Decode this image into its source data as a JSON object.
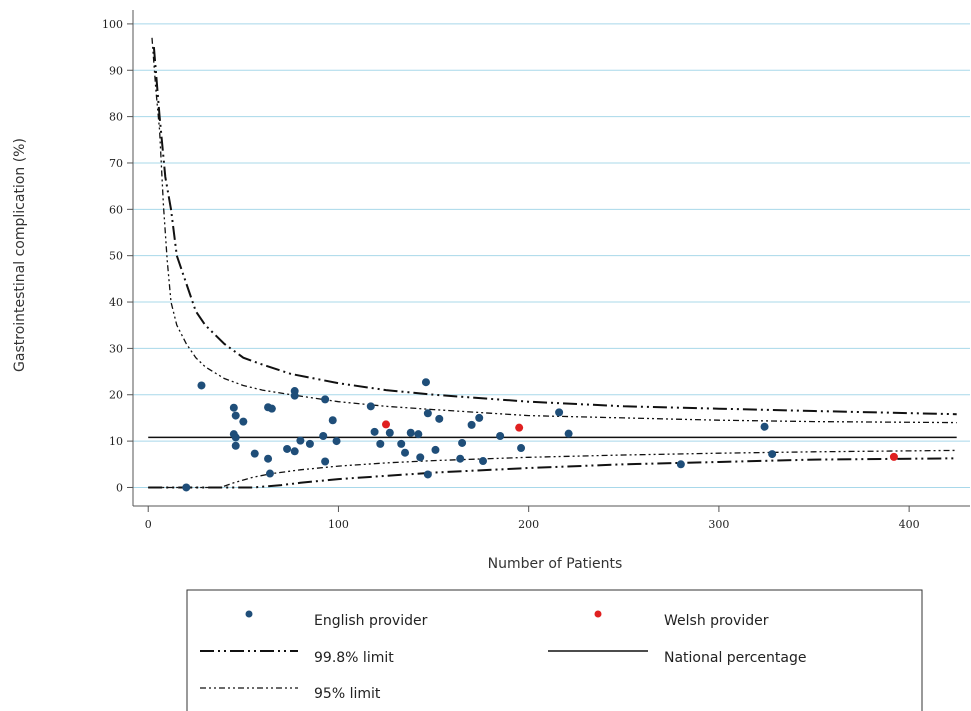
{
  "chart_data": {
    "type": "scatter",
    "title": "",
    "xlabel": "Number of Patients",
    "ylabel": "Gastrointestinal complication (%)",
    "xlim": [
      -8,
      432
    ],
    "ylim": [
      -4,
      103
    ],
    "xticks": [
      0,
      100,
      200,
      300,
      400
    ],
    "yticks": [
      0,
      10,
      20,
      30,
      40,
      50,
      60,
      70,
      80,
      90,
      100
    ],
    "grid": "horizontal",
    "legend_position": "bottom",
    "national_percentage": 10.8,
    "series": [
      {
        "name": "English provider",
        "kind": "points",
        "color": "#1f4e79",
        "points": [
          [
            20,
            0
          ],
          [
            28,
            22
          ],
          [
            45,
            17.2
          ],
          [
            46,
            15.5
          ],
          [
            45,
            11.5
          ],
          [
            46,
            10.8
          ],
          [
            46,
            9
          ],
          [
            50,
            14.2
          ],
          [
            56,
            7.3
          ],
          [
            63,
            17.3
          ],
          [
            65,
            17
          ],
          [
            63,
            6.2
          ],
          [
            64,
            3
          ],
          [
            73,
            8.3
          ],
          [
            77,
            7.8
          ],
          [
            77,
            19.8
          ],
          [
            77,
            20.8
          ],
          [
            80,
            10.1
          ],
          [
            85,
            9.4
          ],
          [
            92,
            11.1
          ],
          [
            93,
            19
          ],
          [
            93,
            5.6
          ],
          [
            97,
            14.5
          ],
          [
            99,
            10
          ],
          [
            117,
            17.5
          ],
          [
            119,
            12
          ],
          [
            122,
            9.4
          ],
          [
            127,
            11.8
          ],
          [
            133,
            9.4
          ],
          [
            135,
            7.5
          ],
          [
            138,
            11.8
          ],
          [
            142,
            11.5
          ],
          [
            143,
            6.5
          ],
          [
            146,
            22.7
          ],
          [
            147,
            16
          ],
          [
            147,
            2.8
          ],
          [
            151,
            8.1
          ],
          [
            153,
            14.8
          ],
          [
            164,
            6.2
          ],
          [
            165,
            9.6
          ],
          [
            170,
            13.5
          ],
          [
            174,
            15
          ],
          [
            176,
            5.7
          ],
          [
            185,
            11.1
          ],
          [
            196,
            8.5
          ],
          [
            216,
            16.2
          ],
          [
            221,
            11.6
          ],
          [
            280,
            5
          ],
          [
            324,
            13.1
          ],
          [
            328,
            7.2
          ]
        ]
      },
      {
        "name": "Welsh provider",
        "kind": "points",
        "color": "#e02020",
        "points": [
          [
            125,
            13.6
          ],
          [
            195,
            12.9
          ],
          [
            392,
            6.6
          ]
        ]
      },
      {
        "name": "99.8% limit",
        "kind": "funnel",
        "upper": [
          [
            3,
            95
          ],
          [
            6,
            80
          ],
          [
            9,
            67
          ],
          [
            12,
            60
          ],
          [
            15,
            50
          ],
          [
            20,
            44
          ],
          [
            25,
            38
          ],
          [
            30,
            35
          ],
          [
            40,
            31
          ],
          [
            50,
            28
          ],
          [
            60,
            26.5
          ],
          [
            75,
            24.5
          ],
          [
            100,
            22.5
          ],
          [
            125,
            21
          ],
          [
            150,
            20
          ],
          [
            200,
            18.5
          ],
          [
            250,
            17.5
          ],
          [
            300,
            17
          ],
          [
            350,
            16.5
          ],
          [
            425,
            15.8
          ]
        ],
        "lower": [
          [
            0,
            0
          ],
          [
            55,
            0
          ],
          [
            70,
            0.5
          ],
          [
            80,
            1
          ],
          [
            100,
            1.8
          ],
          [
            150,
            3.2
          ],
          [
            200,
            4.2
          ],
          [
            250,
            5
          ],
          [
            300,
            5.5
          ],
          [
            350,
            6
          ],
          [
            425,
            6.3
          ]
        ]
      },
      {
        "name": "95% limit",
        "kind": "funnel",
        "upper": [
          [
            2,
            97
          ],
          [
            4,
            86
          ],
          [
            6,
            77
          ],
          [
            8,
            61
          ],
          [
            10,
            49
          ],
          [
            12,
            40
          ],
          [
            15,
            35
          ],
          [
            20,
            31
          ],
          [
            25,
            28
          ],
          [
            30,
            26
          ],
          [
            40,
            23.5
          ],
          [
            50,
            22
          ],
          [
            60,
            21
          ],
          [
            75,
            20
          ],
          [
            100,
            18.5
          ],
          [
            125,
            17.5
          ],
          [
            150,
            16.8
          ],
          [
            200,
            15.5
          ],
          [
            250,
            15
          ],
          [
            300,
            14.5
          ],
          [
            350,
            14.2
          ],
          [
            425,
            14
          ]
        ],
        "lower": [
          [
            0,
            0
          ],
          [
            38,
            0
          ],
          [
            45,
            1
          ],
          [
            55,
            2.2
          ],
          [
            65,
            3
          ],
          [
            80,
            3.8
          ],
          [
            100,
            4.6
          ],
          [
            125,
            5.3
          ],
          [
            150,
            5.8
          ],
          [
            200,
            6.5
          ],
          [
            250,
            7
          ],
          [
            300,
            7.4
          ],
          [
            350,
            7.7
          ],
          [
            425,
            8
          ]
        ]
      },
      {
        "name": "National percentage",
        "kind": "hline"
      }
    ]
  },
  "legend": {
    "english": "English provider",
    "welsh": "Welsh provider",
    "limit998": "99.8% limit",
    "national": "National percentage",
    "limit95": "95% limit"
  }
}
